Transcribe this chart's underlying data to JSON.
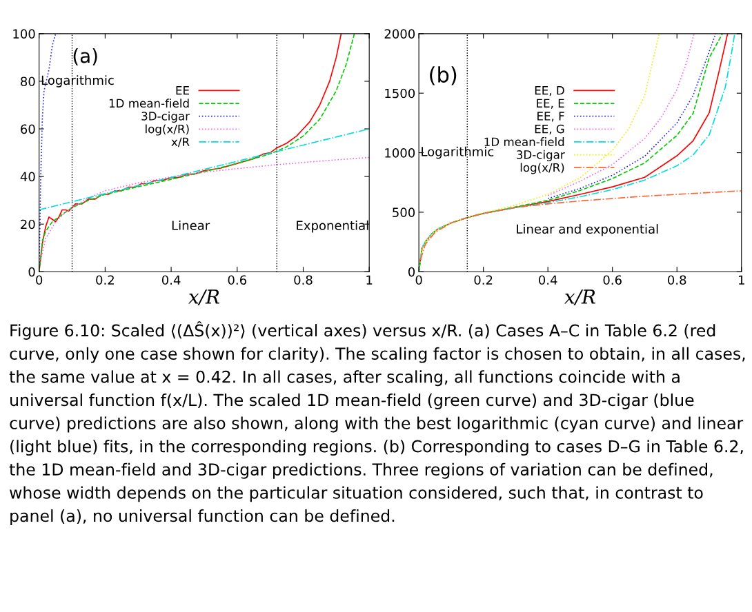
{
  "chart_data": [
    {
      "type": "line",
      "xlabel": "x/R",
      "xlim": [
        0,
        1
      ],
      "xticks": [
        0,
        0.2,
        0.4,
        0.6,
        0.8,
        1
      ],
      "ylim": [
        0,
        100
      ],
      "yticks": [
        0,
        20,
        40,
        60,
        80,
        100
      ],
      "grid": false,
      "legend": "top",
      "series": [
        {
          "name": "EE",
          "color": "#ff0000",
          "line_style": "solid",
          "x": [
            0,
            0.01,
            0.02,
            0.03,
            0.04,
            0.05,
            0.06,
            0.07,
            0.08,
            0.09,
            0.1,
            0.11,
            0.13,
            0.15,
            0.17,
            0.19,
            0.21,
            0.23,
            0.25,
            0.27,
            0.29,
            0.31,
            0.33,
            0.35,
            0.37,
            0.4,
            0.42,
            0.45,
            0.47,
            0.5,
            0.55,
            0.6,
            0.65,
            0.68,
            0.7,
            0.72,
            0.75,
            0.78,
            0.8,
            0.82,
            0.85,
            0.88,
            0.9,
            0.915
          ],
          "values": [
            0,
            12,
            19,
            23,
            22,
            21,
            23,
            26,
            26,
            25.5,
            27,
            28.5,
            28.5,
            30.5,
            30.5,
            32.5,
            32.5,
            34,
            34,
            35.5,
            35.5,
            37,
            37,
            38.3,
            38.3,
            39.5,
            39.5,
            41,
            41,
            42.5,
            43.5,
            45.5,
            47.5,
            49.5,
            50,
            52,
            54,
            57,
            60,
            63,
            70,
            80,
            90,
            100
          ]
        },
        {
          "name": "1D mean-field",
          "color": "#00cc00",
          "line_style": "dashed",
          "x": [
            0,
            0.01,
            0.02,
            0.04,
            0.06,
            0.08,
            0.1,
            0.15,
            0.2,
            0.3,
            0.4,
            0.5,
            0.6,
            0.7,
            0.75,
            0.8,
            0.85,
            0.9,
            0.93,
            0.955
          ],
          "values": [
            0,
            13,
            17,
            21,
            23,
            25,
            27,
            30,
            32.5,
            35.7,
            38.8,
            42,
            45.5,
            49.5,
            52.5,
            57,
            64,
            76,
            87,
            100
          ]
        },
        {
          "name": "3D-cigar",
          "color": "#2222ee",
          "line_style": "dotted",
          "x": [
            0,
            0.005,
            0.01,
            0.015,
            0.02,
            0.03,
            0.04,
            0.05
          ],
          "values": [
            0,
            40,
            65,
            76,
            79,
            85,
            95,
            100
          ]
        },
        {
          "name": "log(x/R)",
          "color": "#ee66ee",
          "line_style": "dotted",
          "x": [
            0.005,
            0.02,
            0.05,
            0.08,
            0.1,
            0.15,
            0.2,
            0.3,
            0.4,
            0.5,
            0.6,
            0.7,
            0.8,
            0.9,
            1
          ],
          "values": [
            5,
            14,
            21,
            25,
            27,
            31,
            34,
            37.3,
            39.8,
            41.8,
            43.3,
            44.7,
            45.9,
            47,
            48
          ]
        },
        {
          "name": "x/R",
          "color": "#00dddd",
          "line_style": "dashdot",
          "x": [
            0,
            1
          ],
          "values": [
            26,
            60
          ]
        }
      ],
      "ref_lines": [
        {
          "axis": "x",
          "value": 0.1,
          "color": "#000000",
          "line_style": "dotted"
        },
        {
          "axis": "x",
          "value": 0.72,
          "color": "#000000",
          "line_style": "dotted"
        }
      ],
      "annotations": [
        "(a)",
        "Logarithmic",
        "Linear",
        "Exponential",
        "Figure 6.10: Scaled ⟨(ΔŜ(x))²⟩ (vertical axes) versus x/R. (a) Cases A–C in Table 6.2 (red curve, only one case shown for clarity). The scaling factor is chosen to obtain, in all cases, the same value at x = 0.42. In all cases, after scaling, all functions coincide with a universal function f(x/L). The scaled 1D mean-field (green curve) and 3D-cigar (blue curve) predictions are also shown, along with the best logarithmic (cyan curve) and linear (light blue) fits, in the corresponding regions. (b) Corresponding to cases D–G in Table 6.2, the 1D mean-field and 3D-cigar predictions. Three regions of variation can be defined, whose width depends on the particular situation considered, such that, in contrast to panel (a), no universal function can be defined."
      ]
    },
    {
      "type": "line",
      "xlabel": "x/R",
      "xlim": [
        0,
        1
      ],
      "xticks": [
        0,
        0.2,
        0.4,
        0.6,
        0.8,
        1
      ],
      "ylim": [
        0,
        2000
      ],
      "yticks": [
        0,
        500,
        1000,
        1500,
        2000
      ],
      "grid": false,
      "legend": "top",
      "series": [
        {
          "name": "EE, D",
          "color": "#ff0000",
          "line_style": "solid",
          "x": [
            0,
            0.01,
            0.02,
            0.04,
            0.06,
            0.1,
            0.15,
            0.2,
            0.3,
            0.4,
            0.5,
            0.6,
            0.7,
            0.8,
            0.85,
            0.9,
            0.93,
            0.957
          ],
          "values": [
            0,
            200,
            250,
            320,
            360,
            410,
            455,
            490,
            540,
            590,
            650,
            713,
            793,
            974,
            1100,
            1335,
            1677,
            2000
          ]
        },
        {
          "name": "EE, E",
          "color": "#00cc00",
          "line_style": "dashed",
          "x": [
            0,
            0.01,
            0.02,
            0.04,
            0.06,
            0.1,
            0.15,
            0.2,
            0.3,
            0.4,
            0.5,
            0.6,
            0.7,
            0.8,
            0.85,
            0.9,
            0.941
          ],
          "values": [
            0,
            200,
            250,
            320,
            360,
            410,
            455,
            490,
            545,
            600,
            683,
            783,
            914,
            1145,
            1330,
            1797,
            2000
          ]
        },
        {
          "name": "EE, F",
          "color": "#2222ee",
          "line_style": "dotted",
          "x": [
            0.4,
            0.5,
            0.6,
            0.7,
            0.8,
            0.85,
            0.9,
            0.92
          ],
          "values": [
            615,
            700,
            810,
            970,
            1250,
            1480,
            1850,
            2000
          ]
        },
        {
          "name": "EE, G",
          "color": "#ee66ee",
          "line_style": "dotted",
          "x": [
            0.4,
            0.5,
            0.6,
            0.7,
            0.75,
            0.8,
            0.83,
            0.853
          ],
          "values": [
            640,
            760,
            900,
            1120,
            1290,
            1530,
            1760,
            2000
          ]
        },
        {
          "name": "1D mean-field",
          "color": "#00dddd",
          "line_style": "dashdot",
          "x": [
            0,
            0.01,
            0.02,
            0.04,
            0.06,
            0.1,
            0.15,
            0.2,
            0.3,
            0.4,
            0.5,
            0.6,
            0.7,
            0.8,
            0.85,
            0.9,
            0.95,
            0.97,
            0.979
          ],
          "values": [
            0,
            200,
            250,
            320,
            360,
            410,
            455,
            490,
            538,
            580,
            630,
            690,
            770,
            890,
            980,
            1150,
            1550,
            1850,
            2000
          ]
        },
        {
          "name": "3D-cigar",
          "color": "#eeee00",
          "line_style": "dotted",
          "x": [
            0,
            0.01,
            0.02,
            0.04,
            0.06,
            0.1,
            0.15,
            0.2,
            0.3,
            0.4,
            0.5,
            0.6,
            0.65,
            0.7,
            0.745
          ],
          "values": [
            0,
            200,
            250,
            320,
            360,
            410,
            455,
            495,
            560,
            650,
            790,
            1020,
            1200,
            1480,
            2000
          ]
        },
        {
          "name": "log(x/R)",
          "color": "#ff6633",
          "line_style": "dashdot",
          "x": [
            0.005,
            0.02,
            0.05,
            0.1,
            0.15,
            0.2,
            0.3,
            0.4,
            0.5,
            0.6,
            0.7,
            0.8,
            0.9,
            1
          ],
          "values": [
            100,
            230,
            330,
            410,
            455,
            490,
            540,
            570,
            595,
            615,
            635,
            650,
            665,
            680
          ]
        }
      ],
      "ref_lines": [
        {
          "axis": "x",
          "value": 0.15,
          "color": "#000000",
          "line_style": "dotted"
        }
      ],
      "annotations": [
        "(b)",
        "Logarithmic",
        "Linear and exponential"
      ]
    }
  ]
}
